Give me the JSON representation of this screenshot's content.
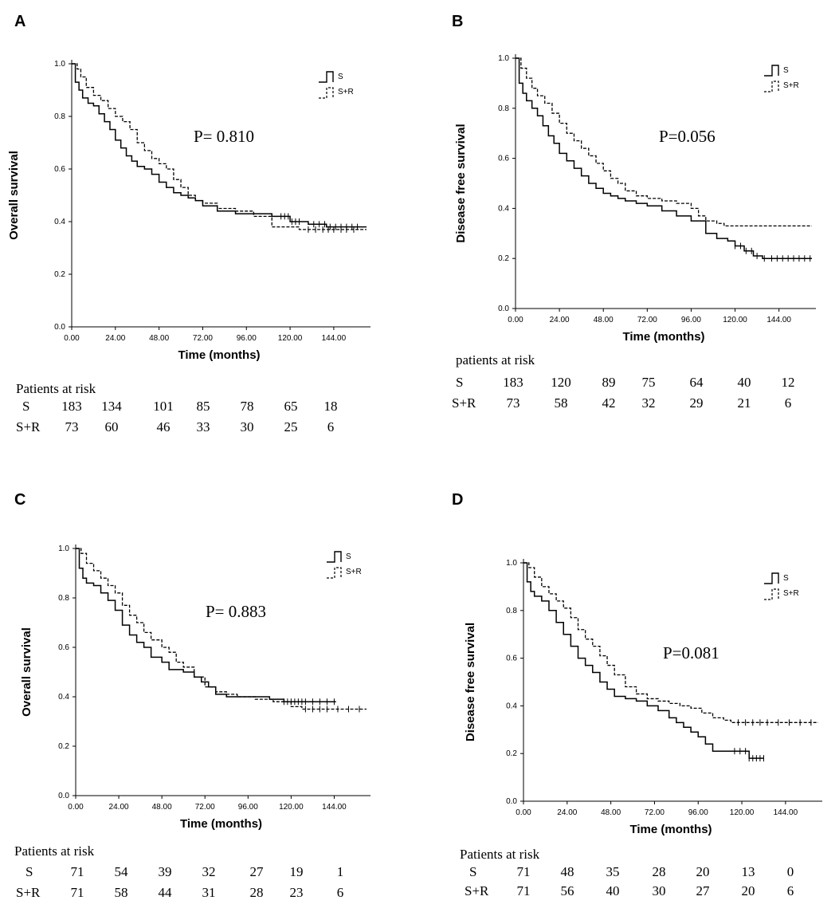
{
  "panels": [
    {
      "letter": "A",
      "chart_data": {
        "type": "line",
        "title": "",
        "xlabel": "Time (months)",
        "ylabel": "Overall survival",
        "xlim": [
          0,
          162
        ],
        "ylim": [
          0,
          1.0
        ],
        "x_ticks": [
          "0.00",
          "24.00",
          "48.00",
          "72.00",
          "96.00",
          "120.00",
          "144.00"
        ],
        "y_ticks": [
          "0.0",
          "0.2",
          "0.4",
          "0.6",
          "0.8",
          "1.0"
        ],
        "p_value": "P= 0.810",
        "legend": [
          "S",
          "S+R"
        ],
        "series": [
          {
            "name": "S",
            "style": "solid",
            "x": [
              0,
              2,
              4,
              6,
              9,
              12,
              15,
              18,
              21,
              24,
              27,
              30,
              33,
              36,
              40,
              44,
              48,
              52,
              56,
              60,
              64,
              68,
              72,
              80,
              90,
              100,
              110,
              120,
              130,
              140,
              162
            ],
            "y": [
              1.0,
              0.93,
              0.9,
              0.87,
              0.85,
              0.84,
              0.81,
              0.78,
              0.75,
              0.71,
              0.68,
              0.65,
              0.63,
              0.61,
              0.6,
              0.58,
              0.55,
              0.53,
              0.51,
              0.5,
              0.49,
              0.48,
              0.46,
              0.44,
              0.43,
              0.43,
              0.42,
              0.4,
              0.39,
              0.38,
              0.38
            ],
            "censor_x": [
              115,
              117,
              119,
              121,
              123,
              125,
              133,
              136,
              139,
              142,
              145,
              148,
              151,
              154,
              157
            ]
          },
          {
            "name": "S+R",
            "style": "dashed",
            "x": [
              0,
              3,
              5,
              8,
              12,
              16,
              20,
              24,
              28,
              32,
              36,
              40,
              44,
              48,
              52,
              56,
              60,
              64,
              68,
              72,
              80,
              90,
              100,
              110,
              120,
              125,
              130,
              140,
              162
            ],
            "y": [
              1.0,
              0.98,
              0.95,
              0.91,
              0.88,
              0.86,
              0.83,
              0.8,
              0.78,
              0.75,
              0.7,
              0.67,
              0.64,
              0.62,
              0.6,
              0.56,
              0.53,
              0.5,
              0.48,
              0.47,
              0.45,
              0.44,
              0.42,
              0.38,
              0.38,
              0.37,
              0.37,
              0.37,
              0.37
            ],
            "censor_x": [
              130,
              134,
              138,
              141,
              144,
              148,
              151,
              155
            ]
          }
        ]
      },
      "risk": {
        "title": "Patients at risk",
        "rows": [
          {
            "label": "S",
            "values": [
              "183",
              "134",
              "101",
              "85",
              "78",
              "65",
              "18"
            ]
          },
          {
            "label": "S+R",
            "values": [
              "73",
              "60",
              "46",
              "33",
              "30",
              "25",
              "6"
            ]
          }
        ]
      }
    },
    {
      "letter": "B",
      "chart_data": {
        "type": "line",
        "title": "",
        "xlabel": "Time (months)",
        "ylabel": "Disease free survival",
        "xlim": [
          0,
          162
        ],
        "ylim": [
          0,
          1.0
        ],
        "x_ticks": [
          "0.00",
          "24.00",
          "48.00",
          "72.00",
          "96.00",
          "120.00",
          "144.00"
        ],
        "y_ticks": [
          "0.0",
          "0.2",
          "0.4",
          "0.6",
          "0.8",
          "1.0"
        ],
        "p_value": "P=0.056",
        "legend": [
          "S",
          "S+R"
        ],
        "series": [
          {
            "name": "S",
            "style": "solid",
            "x": [
              0,
              2,
              4,
              6,
              9,
              12,
              15,
              18,
              21,
              24,
              28,
              32,
              36,
              40,
              44,
              48,
              52,
              56,
              60,
              66,
              72,
              80,
              88,
              96,
              104,
              110,
              116,
              120,
              125,
              130,
              135,
              162
            ],
            "y": [
              1.0,
              0.9,
              0.86,
              0.83,
              0.8,
              0.77,
              0.73,
              0.69,
              0.66,
              0.62,
              0.59,
              0.56,
              0.53,
              0.5,
              0.48,
              0.46,
              0.45,
              0.44,
              0.43,
              0.42,
              0.41,
              0.39,
              0.37,
              0.35,
              0.3,
              0.28,
              0.27,
              0.25,
              0.23,
              0.21,
              0.2,
              0.2
            ],
            "censor_x": [
              120,
              123,
              126,
              129,
              132,
              136,
              140,
              143,
              146,
              149,
              152,
              155,
              158,
              161
            ]
          },
          {
            "name": "S+R",
            "style": "dashed",
            "x": [
              0,
              3,
              6,
              9,
              12,
              16,
              20,
              24,
              28,
              32,
              36,
              40,
              44,
              48,
              52,
              56,
              60,
              66,
              72,
              80,
              88,
              96,
              100,
              104,
              110,
              114,
              162
            ],
            "y": [
              1.0,
              0.96,
              0.92,
              0.88,
              0.85,
              0.82,
              0.78,
              0.74,
              0.7,
              0.67,
              0.64,
              0.61,
              0.58,
              0.55,
              0.52,
              0.5,
              0.47,
              0.45,
              0.44,
              0.43,
              0.42,
              0.4,
              0.37,
              0.35,
              0.34,
              0.33,
              0.33
            ],
            "censor_x": []
          }
        ]
      },
      "risk": {
        "title": "patients at risk",
        "rows": [
          {
            "label": "S",
            "values": [
              "183",
              "120",
              "89",
              "75",
              "64",
              "40",
              "12"
            ]
          },
          {
            "label": "S+R",
            "values": [
              "73",
              "58",
              "42",
              "32",
              "29",
              "21",
              "6"
            ]
          }
        ]
      }
    },
    {
      "letter": "C",
      "chart_data": {
        "type": "line",
        "title": "",
        "xlabel": "Time (months)",
        "ylabel": "Overall survival",
        "xlim": [
          0,
          162
        ],
        "ylim": [
          0,
          1.0
        ],
        "x_ticks": [
          "0.00",
          "24.00",
          "48.00",
          "72.00",
          "96.00",
          "120.00",
          "144.00"
        ],
        "y_ticks": [
          "0.0",
          "0.2",
          "0.4",
          "0.6",
          "0.8",
          "1.0"
        ],
        "p_value": "P= 0.883",
        "legend": [
          "S",
          "S+R"
        ],
        "series": [
          {
            "name": "S",
            "style": "solid",
            "x": [
              0,
              2,
              4,
              6,
              10,
              14,
              18,
              22,
              26,
              30,
              34,
              38,
              42,
              48,
              52,
              56,
              60,
              66,
              70,
              74,
              78,
              84,
              90,
              96,
              108,
              116,
              120,
              126,
              145
            ],
            "y": [
              1.0,
              0.92,
              0.88,
              0.86,
              0.85,
              0.82,
              0.79,
              0.75,
              0.69,
              0.65,
              0.62,
              0.6,
              0.56,
              0.54,
              0.51,
              0.51,
              0.5,
              0.48,
              0.46,
              0.44,
              0.41,
              0.4,
              0.4,
              0.4,
              0.39,
              0.38,
              0.38,
              0.38,
              0.38
            ],
            "censor_x": [
              116,
              118,
              120,
              122,
              124,
              126,
              128,
              132,
              136,
              140,
              144
            ]
          },
          {
            "name": "S+R",
            "style": "dashed",
            "x": [
              0,
              3,
              6,
              10,
              14,
              18,
              22,
              26,
              30,
              34,
              38,
              42,
              48,
              52,
              56,
              60,
              66,
              72,
              78,
              84,
              90,
              100,
              110,
              120,
              126,
              162
            ],
            "y": [
              1.0,
              0.98,
              0.94,
              0.91,
              0.88,
              0.85,
              0.82,
              0.77,
              0.73,
              0.7,
              0.66,
              0.63,
              0.6,
              0.58,
              0.54,
              0.52,
              0.48,
              0.44,
              0.42,
              0.41,
              0.4,
              0.39,
              0.38,
              0.36,
              0.35,
              0.35
            ],
            "censor_x": [
              128,
              132,
              136,
              140,
              146,
              152,
              158
            ]
          }
        ]
      },
      "risk": {
        "title": "Patients at risk",
        "rows": [
          {
            "label": "S",
            "values": [
              "71",
              "54",
              "39",
              "32",
              "27",
              "19",
              "1"
            ]
          },
          {
            "label": "S+R",
            "values": [
              "71",
              "58",
              "44",
              "31",
              "28",
              "23",
              "6"
            ]
          }
        ]
      }
    },
    {
      "letter": "D",
      "chart_data": {
        "type": "line",
        "title": "",
        "xlabel": "Time (months)",
        "ylabel": "Disease free survival",
        "xlim": [
          0,
          162
        ],
        "ylim": [
          0,
          1.0
        ],
        "x_ticks": [
          "0.00",
          "24.00",
          "48.00",
          "72.00",
          "96.00",
          "120.00",
          "144.00"
        ],
        "y_ticks": [
          "0.0",
          "0.2",
          "0.4",
          "0.6",
          "0.8",
          "1.0"
        ],
        "p_value": "P=0.081",
        "legend": [
          "S",
          "S+R"
        ],
        "series": [
          {
            "name": "S",
            "style": "solid",
            "x": [
              0,
              2,
              4,
              6,
              10,
              14,
              18,
              22,
              26,
              30,
              34,
              38,
              42,
              46,
              50,
              56,
              62,
              68,
              74,
              80,
              84,
              88,
              92,
              96,
              100,
              104,
              110,
              120,
              124,
              126,
              132
            ],
            "y": [
              1.0,
              0.92,
              0.88,
              0.86,
              0.84,
              0.8,
              0.75,
              0.7,
              0.65,
              0.6,
              0.57,
              0.54,
              0.5,
              0.47,
              0.44,
              0.43,
              0.42,
              0.4,
              0.38,
              0.35,
              0.33,
              0.31,
              0.29,
              0.27,
              0.24,
              0.21,
              0.21,
              0.21,
              0.18,
              0.18,
              0.18
            ],
            "censor_x": [
              116,
              119,
              122,
              124,
              126,
              128,
              130,
              132
            ]
          },
          {
            "name": "S+R",
            "style": "dashed",
            "x": [
              0,
              3,
              6,
              10,
              14,
              18,
              22,
              26,
              30,
              34,
              38,
              42,
              46,
              50,
              56,
              62,
              68,
              74,
              80,
              86,
              92,
              98,
              104,
              110,
              114,
              162
            ],
            "y": [
              1.0,
              0.98,
              0.94,
              0.9,
              0.87,
              0.84,
              0.81,
              0.77,
              0.72,
              0.68,
              0.65,
              0.61,
              0.57,
              0.53,
              0.48,
              0.45,
              0.43,
              0.42,
              0.41,
              0.4,
              0.39,
              0.37,
              0.35,
              0.34,
              0.33,
              0.33
            ],
            "censor_x": [
              118,
              122,
              126,
              130,
              134,
              140,
              146,
              152,
              158
            ]
          }
        ]
      },
      "risk": {
        "title": "Patients at risk",
        "rows": [
          {
            "label": "S",
            "values": [
              "71",
              "48",
              "35",
              "28",
              "20",
              "13",
              "0"
            ]
          },
          {
            "label": "S+R",
            "values": [
              "71",
              "56",
              "40",
              "30",
              "27",
              "20",
              "6"
            ]
          }
        ]
      }
    }
  ]
}
